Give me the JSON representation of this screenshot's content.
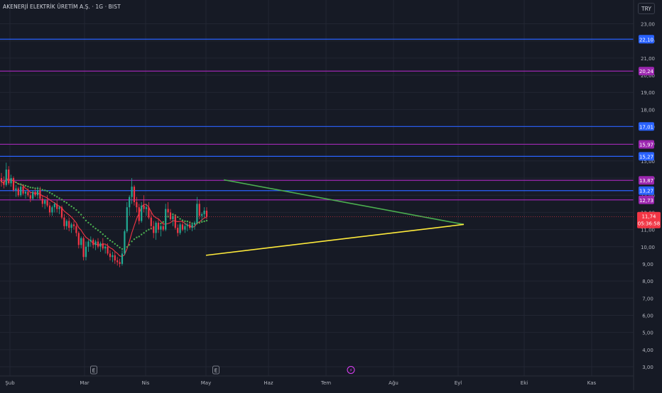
{
  "header": {
    "symbol_title": "AKENERJİ ELEKTRİK ÜRETİM A.Ş. · 1G · BIST",
    "currency": "TRY"
  },
  "chart_data": {
    "type": "candlestick",
    "y_axis_ticks": [
      "3,00",
      "4,00",
      "5,00",
      "6,00",
      "7,00",
      "8,00",
      "9,00",
      "10,00",
      "11,00",
      "12,00",
      "13,00",
      "14,00",
      "15,00",
      "16,00",
      "17,00",
      "18,00",
      "19,00",
      "20,00",
      "21,00",
      "22,00",
      "23,00"
    ],
    "x_axis_ticks": [
      "Şub",
      "Mar",
      "Nis",
      "May",
      "Haz",
      "Tem",
      "Ağu",
      "Eyl",
      "Eki",
      "Kas"
    ],
    "ylim": [
      2.7,
      23.6
    ],
    "grid": true,
    "colors": {
      "background": "#161a25",
      "grid": "#222633",
      "up": "#22ab94",
      "down": "#f23645",
      "blue_level": "#2962ff",
      "purple_level": "#9c27b0",
      "ma_red": "#f23645",
      "ma_green_dotted": "#4caf50",
      "trend_upper": "#4caf50",
      "trend_lower": "#ffeb3b",
      "price_tag": "#f23645"
    },
    "horizontal_levels": [
      {
        "value": 22.1,
        "label": "22,10",
        "color": "blue"
      },
      {
        "value": 20.24,
        "label": "20,24",
        "color": "purple"
      },
      {
        "value": 17.01,
        "label": "17,01",
        "color": "blue"
      },
      {
        "value": 15.97,
        "label": "15,97",
        "color": "purple"
      },
      {
        "value": 15.27,
        "label": "15,27",
        "color": "blue"
      },
      {
        "value": 13.87,
        "label": "13,87",
        "color": "purple"
      },
      {
        "value": 13.27,
        "label": "13,27",
        "color": "blue"
      },
      {
        "value": 12.73,
        "label": "12,73",
        "color": "purple"
      }
    ],
    "current_price": {
      "value": 11.74,
      "label": "11,74",
      "countdown": "05:36:58"
    },
    "trendlines": [
      {
        "name": "upper",
        "from": {
          "date": "May",
          "offset_bars": 20,
          "value": 13.9
        },
        "to": {
          "date": "Eyl",
          "value": 11.3
        }
      },
      {
        "name": "lower",
        "from": {
          "date": "May",
          "value": 9.5
        },
        "to": {
          "date": "Eyl",
          "value": 11.3
        }
      }
    ],
    "event_markers": [
      {
        "label": "E",
        "date": "Mar"
      },
      {
        "label": "E",
        "date": "May"
      },
      {
        "label": "⚡",
        "date": "Tem"
      }
    ],
    "candles": [
      [
        14.0,
        14.3,
        13.5,
        13.8
      ],
      [
        13.8,
        14.1,
        13.4,
        13.6
      ],
      [
        13.6,
        14.9,
        13.5,
        14.5
      ],
      [
        14.5,
        14.7,
        13.6,
        13.7
      ],
      [
        13.7,
        14.2,
        13.5,
        14.0
      ],
      [
        14.0,
        14.1,
        13.2,
        13.3
      ],
      [
        13.3,
        13.6,
        12.9,
        13.4
      ],
      [
        13.4,
        13.5,
        12.9,
        13.0
      ],
      [
        13.0,
        13.6,
        12.9,
        13.5
      ],
      [
        13.5,
        13.6,
        13.0,
        13.1
      ],
      [
        13.1,
        13.3,
        12.8,
        13.2
      ],
      [
        13.2,
        13.4,
        12.9,
        13.0
      ],
      [
        13.0,
        13.2,
        12.6,
        12.8
      ],
      [
        12.8,
        13.3,
        12.7,
        13.2
      ],
      [
        13.2,
        13.4,
        12.9,
        13.0
      ],
      [
        13.0,
        13.5,
        12.8,
        13.3
      ],
      [
        13.3,
        13.5,
        12.7,
        12.8
      ],
      [
        12.8,
        13.0,
        12.3,
        12.5
      ],
      [
        12.5,
        12.8,
        12.2,
        12.7
      ],
      [
        12.7,
        13.0,
        12.3,
        12.4
      ],
      [
        12.4,
        12.6,
        11.8,
        12.0
      ],
      [
        12.0,
        12.4,
        11.8,
        12.3
      ],
      [
        12.3,
        12.6,
        12.0,
        12.5
      ],
      [
        12.5,
        12.7,
        12.0,
        12.2
      ],
      [
        12.2,
        12.4,
        11.9,
        12.3
      ],
      [
        12.3,
        12.4,
        11.6,
        11.7
      ],
      [
        11.7,
        11.9,
        11.0,
        11.2
      ],
      [
        11.2,
        11.6,
        11.0,
        11.5
      ],
      [
        11.5,
        11.7,
        10.9,
        11.1
      ],
      [
        11.1,
        11.4,
        10.8,
        11.3
      ],
      [
        11.3,
        11.5,
        11.0,
        11.2
      ],
      [
        11.2,
        11.3,
        10.6,
        10.8
      ],
      [
        10.8,
        10.9,
        9.9,
        10.1
      ],
      [
        10.1,
        10.6,
        9.9,
        10.5
      ],
      [
        10.5,
        10.6,
        9.2,
        9.4
      ],
      [
        9.4,
        10.3,
        9.2,
        10.0
      ],
      [
        10.0,
        10.4,
        9.7,
        10.3
      ],
      [
        10.3,
        10.6,
        10.0,
        10.4
      ],
      [
        10.4,
        10.5,
        9.9,
        10.1
      ],
      [
        10.1,
        10.4,
        9.8,
        10.3
      ],
      [
        10.3,
        10.5,
        9.9,
        10.0
      ],
      [
        10.0,
        10.3,
        9.7,
        10.2
      ],
      [
        10.2,
        10.5,
        9.8,
        9.9
      ],
      [
        9.9,
        10.1,
        9.6,
        10.0
      ],
      [
        10.0,
        10.2,
        9.5,
        9.6
      ],
      [
        9.6,
        9.8,
        9.2,
        9.4
      ],
      [
        9.4,
        9.7,
        9.1,
        9.5
      ],
      [
        9.5,
        9.7,
        9.0,
        9.2
      ],
      [
        9.2,
        9.4,
        8.9,
        9.1
      ],
      [
        9.1,
        9.3,
        8.8,
        9.0
      ],
      [
        9.0,
        9.8,
        8.9,
        9.6
      ],
      [
        9.6,
        11.0,
        9.5,
        10.9
      ],
      [
        10.9,
        12.6,
        10.8,
        12.3
      ],
      [
        12.3,
        13.0,
        11.8,
        12.9
      ],
      [
        12.9,
        14.0,
        12.5,
        13.5
      ],
      [
        13.5,
        13.6,
        12.4,
        12.6
      ],
      [
        12.6,
        12.9,
        12.0,
        12.3
      ],
      [
        12.3,
        12.5,
        11.3,
        11.5
      ],
      [
        11.5,
        12.6,
        11.4,
        12.4
      ],
      [
        12.4,
        13.0,
        12.0,
        12.2
      ],
      [
        12.2,
        12.5,
        11.8,
        12.3
      ],
      [
        12.3,
        12.6,
        11.6,
        11.7
      ],
      [
        11.7,
        12.1,
        11.0,
        11.2
      ],
      [
        11.2,
        11.5,
        10.5,
        10.8
      ],
      [
        10.8,
        11.5,
        10.4,
        11.4
      ],
      [
        11.4,
        11.6,
        10.8,
        11.0
      ],
      [
        11.0,
        11.3,
        10.6,
        11.2
      ],
      [
        11.2,
        11.4,
        10.9,
        11.0
      ],
      [
        11.0,
        12.5,
        10.9,
        12.2
      ],
      [
        12.2,
        12.6,
        11.8,
        12.0
      ],
      [
        12.0,
        12.2,
        11.5,
        11.6
      ],
      [
        11.6,
        11.9,
        11.2,
        11.8
      ],
      [
        11.8,
        11.9,
        11.0,
        11.1
      ],
      [
        11.1,
        11.3,
        10.6,
        10.8
      ],
      [
        10.8,
        11.4,
        10.7,
        11.3
      ],
      [
        11.3,
        11.5,
        10.9,
        11.0
      ],
      [
        11.0,
        11.4,
        10.8,
        11.2
      ],
      [
        11.2,
        11.4,
        10.9,
        11.3
      ],
      [
        11.3,
        11.5,
        11.0,
        11.1
      ],
      [
        11.1,
        11.4,
        10.9,
        11.3
      ],
      [
        11.3,
        11.5,
        11.0,
        11.4
      ],
      [
        11.4,
        12.9,
        11.3,
        12.5
      ],
      [
        12.5,
        12.7,
        11.6,
        11.8
      ],
      [
        11.8,
        12.0,
        11.5,
        11.9
      ],
      [
        11.9,
        12.3,
        11.7,
        12.1
      ],
      [
        12.1,
        12.3,
        11.6,
        11.74
      ]
    ]
  }
}
